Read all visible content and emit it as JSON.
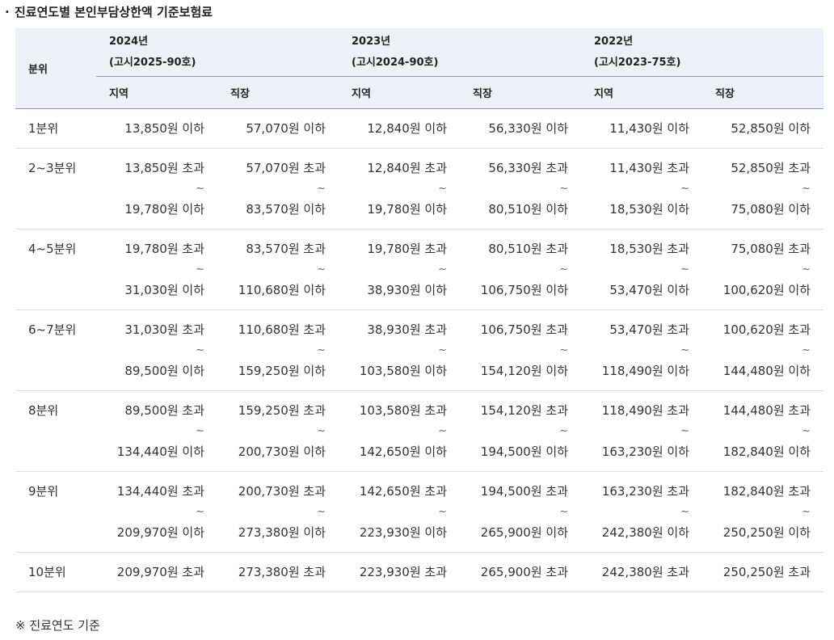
{
  "title": {
    "bullet": "·",
    "text": "진료연도별 본인부담상한액 기준보험료"
  },
  "table": {
    "label_header": "분위",
    "years": [
      {
        "year": "2024년",
        "notice": "(고시2025-90호)"
      },
      {
        "year": "2023년",
        "notice": "(고시2024-90호)"
      },
      {
        "year": "2022년",
        "notice": "(고시2023-75호)"
      }
    ],
    "sub_headers": [
      "지역",
      "직장",
      "지역",
      "직장",
      "지역",
      "직장"
    ],
    "tilde": "~",
    "rows": [
      {
        "label": "1분위",
        "cells": [
          {
            "lines": [
              "13,850원 이하"
            ]
          },
          {
            "lines": [
              "57,070원 이하"
            ]
          },
          {
            "lines": [
              "12,840원 이하"
            ]
          },
          {
            "lines": [
              "56,330원 이하"
            ]
          },
          {
            "lines": [
              "11,430원 이하"
            ]
          },
          {
            "lines": [
              "52,850원 이하"
            ]
          }
        ]
      },
      {
        "label": "2~3분위",
        "cells": [
          {
            "lines": [
              "13,850원 초과",
              "19,780원 이하"
            ]
          },
          {
            "lines": [
              "57,070원 초과",
              "83,570원 이하"
            ]
          },
          {
            "lines": [
              "12,840원 초과",
              "19,780원 이하"
            ]
          },
          {
            "lines": [
              "56,330원 초과",
              "80,510원 이하"
            ]
          },
          {
            "lines": [
              "11,430원 초과",
              "18,530원 이하"
            ]
          },
          {
            "lines": [
              "52,850원 초과",
              "75,080원 이하"
            ]
          }
        ]
      },
      {
        "label": "4~5분위",
        "cells": [
          {
            "lines": [
              "19,780원 초과",
              "31,030원 이하"
            ]
          },
          {
            "lines": [
              "83,570원 초과",
              "110,680원 이하"
            ]
          },
          {
            "lines": [
              "19,780원 초과",
              "38,930원 이하"
            ]
          },
          {
            "lines": [
              "80,510원 초과",
              "106,750원 이하"
            ]
          },
          {
            "lines": [
              "18,530원 초과",
              "53,470원 이하"
            ]
          },
          {
            "lines": [
              "75,080원 초과",
              "100,620원 이하"
            ]
          }
        ]
      },
      {
        "label": "6~7분위",
        "cells": [
          {
            "lines": [
              "31,030원 초과",
              "89,500원 이하"
            ]
          },
          {
            "lines": [
              "110,680원 초과",
              "159,250원 이하"
            ]
          },
          {
            "lines": [
              "38,930원 초과",
              "103,580원 이하"
            ]
          },
          {
            "lines": [
              "106,750원 초과",
              "154,120원 이하"
            ]
          },
          {
            "lines": [
              "53,470원 초과",
              "118,490원 이하"
            ]
          },
          {
            "lines": [
              "100,620원 초과",
              "144,480원 이하"
            ]
          }
        ]
      },
      {
        "label": "8분위",
        "cells": [
          {
            "lines": [
              "89,500원 초과",
              "134,440원 이하"
            ]
          },
          {
            "lines": [
              "159,250원 초과",
              "200,730원 이하"
            ]
          },
          {
            "lines": [
              "103,580원 초과",
              "142,650원 이하"
            ]
          },
          {
            "lines": [
              "154,120원 초과",
              "194,500원 이하"
            ]
          },
          {
            "lines": [
              "118,490원 초과",
              "163,230원 이하"
            ]
          },
          {
            "lines": [
              "144,480원 초과",
              "182,840원 이하"
            ]
          }
        ]
      },
      {
        "label": "9분위",
        "cells": [
          {
            "lines": [
              "134,440원 초과",
              "209,970원 이하"
            ]
          },
          {
            "lines": [
              "200,730원 초과",
              "273,380원 이하"
            ]
          },
          {
            "lines": [
              "142,650원 초과",
              "223,930원 이하"
            ]
          },
          {
            "lines": [
              "194,500원 초과",
              "265,900원 이하"
            ]
          },
          {
            "lines": [
              "163,230원 초과",
              "242,380원 이하"
            ]
          },
          {
            "lines": [
              "182,840원 초과",
              "250,250원 이하"
            ]
          }
        ]
      },
      {
        "label": "10분위",
        "cells": [
          {
            "lines": [
              "209,970원 초과"
            ]
          },
          {
            "lines": [
              "273,380원 초과"
            ]
          },
          {
            "lines": [
              "223,930원 초과"
            ]
          },
          {
            "lines": [
              "265,900원 초과"
            ]
          },
          {
            "lines": [
              "242,380원 초과"
            ]
          },
          {
            "lines": [
              "250,250원 초과"
            ]
          }
        ]
      }
    ]
  },
  "note": "※ 진료연도 기준"
}
